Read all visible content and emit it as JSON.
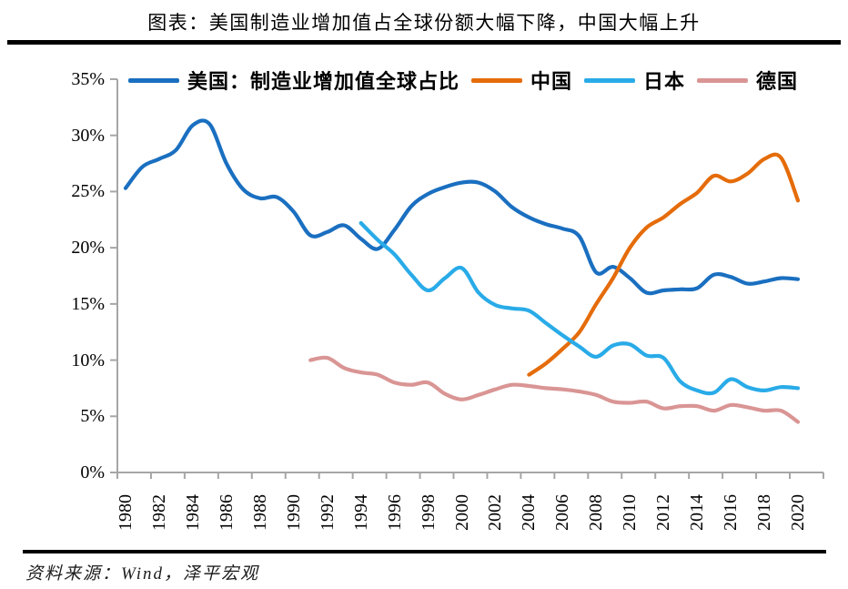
{
  "header": {
    "title": "图表：美国制造业增加值占全球份额大幅下降，中国大幅上升"
  },
  "footer": {
    "source": "资料来源：Wind，泽平宏观"
  },
  "chart_data": {
    "type": "line",
    "title": "图表：美国制造业增加值占全球份额大幅下降，中国大幅上升",
    "xlabel": "",
    "ylabel": "",
    "x_range": [
      1980,
      2020
    ],
    "ylim": [
      0,
      35
    ],
    "ytick_step": 5,
    "grid": false,
    "legend_position": "top",
    "axis_color": "#A6A6A6",
    "yticks": [
      "0%",
      "5%",
      "10%",
      "15%",
      "20%",
      "25%",
      "30%",
      "35%"
    ],
    "xticks": [
      "1980",
      "1982",
      "1984",
      "1986",
      "1988",
      "1990",
      "1992",
      "1994",
      "1996",
      "1998",
      "2000",
      "2002",
      "2004",
      "2006",
      "2008",
      "2010",
      "2012",
      "2014",
      "2016",
      "2018",
      "2020"
    ],
    "series": [
      {
        "key": "us",
        "name": "美国：制造业增加值全球占比",
        "color": "#1A6FC0",
        "start_year": 1980,
        "values": [
          25.3,
          27.2,
          27.9,
          28.7,
          30.9,
          31.0,
          27.5,
          25.2,
          24.4,
          24.5,
          23.2,
          21.1,
          21.4,
          22.0,
          20.8,
          19.9,
          21.6,
          23.7,
          24.8,
          25.4,
          25.8,
          25.8,
          25.0,
          23.6,
          22.7,
          22.1,
          21.7,
          21.0,
          17.8,
          18.3,
          17.3,
          16.0,
          16.2,
          16.3,
          16.4,
          17.6,
          17.4,
          16.8,
          17.0,
          17.3,
          17.2
        ]
      },
      {
        "key": "china",
        "name": "中国",
        "color": "#E56C0A",
        "start_year": 2004,
        "values": [
          8.7,
          9.7,
          11.0,
          12.5,
          15.0,
          17.3,
          20.0,
          21.8,
          22.7,
          23.9,
          24.9,
          26.4,
          25.9,
          26.6,
          27.9,
          28.0,
          24.2
        ]
      },
      {
        "key": "japan",
        "name": "日本",
        "color": "#29ABE8",
        "start_year": 1994,
        "values": [
          22.2,
          20.7,
          19.4,
          17.6,
          16.2,
          17.3,
          18.2,
          16.0,
          14.9,
          14.6,
          14.4,
          13.3,
          12.2,
          11.2,
          10.3,
          11.3,
          11.4,
          10.4,
          10.2,
          8.1,
          7.3,
          7.1,
          8.3,
          7.6,
          7.3,
          7.6,
          7.5
        ]
      },
      {
        "key": "germany",
        "name": "德国",
        "color": "#D99594",
        "start_year": 1991,
        "values": [
          10.0,
          10.2,
          9.3,
          8.9,
          8.7,
          8.0,
          7.8,
          8.0,
          7.0,
          6.5,
          6.9,
          7.4,
          7.8,
          7.7,
          7.5,
          7.4,
          7.2,
          6.9,
          6.3,
          6.2,
          6.3,
          5.7,
          5.9,
          5.9,
          5.5,
          6.0,
          5.8,
          5.5,
          5.5,
          4.5
        ]
      }
    ]
  }
}
